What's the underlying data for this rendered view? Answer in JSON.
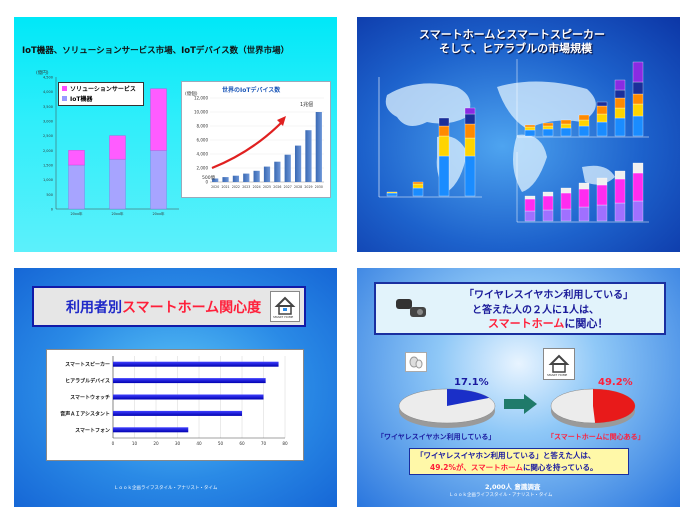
{
  "slide1": {
    "title": "IoT機器、ソリューションサービス市場、IoTデバイス数（世界市場）",
    "axis_unit": "(億円)",
    "legend": [
      "ソリューションサービス",
      "IoT機器"
    ],
    "inset": {
      "title": "世界のIoTデバイス数",
      "unit": "(億個)",
      "note_start": "500億",
      "note_end": "1兆個"
    }
  },
  "slide2": {
    "title_line1": "スマートホームとスマートスピーカー",
    "title_line2": "そして、ヒアラブルの市場規模"
  },
  "slide3": {
    "title_part1": "利用者別",
    "title_part2": "スマートホーム関心度",
    "icon_label": "SMART HOME",
    "footer": "Ｌｏｏｋ企画ライフスタイル・アナリスト・タイム"
  },
  "slide4": {
    "heading_line1": "「ワイヤレスイヤホン利用している」",
    "heading_line2": "と答えた人の２人に1人は、",
    "heading_line3a": "スマートホーム",
    "heading_line3b": "に関心！",
    "icon_label": "SMART HOME",
    "pct_left": "17.1%",
    "pct_right": "49.2%",
    "label_left": "「ワイヤレスイヤホン利用している」",
    "label_right": "「スマートホームに関心ある」",
    "note_line1": "「ワイヤレスイヤホン利用している」と答えた人は、",
    "note_line2a": "49.2%が、",
    "note_line2b": "スマートホーム",
    "note_line2c": "に関心を持っている。",
    "survey": "2,000人 意識調査",
    "footer": "Ｌｏｏｋ企画ライフスタイル・アナリスト・タイム"
  },
  "chart_data": [
    {
      "type": "bar",
      "title": "",
      "categories": [
        "20xx年",
        "20xx年",
        "20xx年"
      ],
      "series": [
        {
          "name": "IoT機器",
          "values": [
            1500,
            1700,
            2000
          ]
        },
        {
          "name": "ソリューションサービス",
          "values": [
            500,
            800,
            2100
          ]
        }
      ],
      "stacked": true,
      "ylim": [
        0,
        4500
      ],
      "yticks": [
        0,
        500,
        1000,
        1500,
        2000,
        2500,
        3000,
        3500,
        4000,
        4500
      ]
    },
    {
      "type": "bar",
      "title": "世界のIoTデバイス数",
      "categories": [
        "2020",
        "2021",
        "2022",
        "2023",
        "2024",
        "2025",
        "2026",
        "2027",
        "2028",
        "2029",
        "2030"
      ],
      "values": [
        500,
        700,
        900,
        1200,
        1600,
        2200,
        2900,
        3900,
        5200,
        7400,
        10000
      ],
      "ylim": [
        0,
        12000
      ],
      "yticks": [
        0,
        2000,
        4000,
        6000,
        8000,
        10000,
        12000
      ]
    },
    {
      "type": "bar",
      "title": "",
      "orientation": "horizontal",
      "categories": [
        "スマートスピーカー",
        "ヒアラブルデバイス",
        "スマートウォッチ",
        "音声ＡＩアシスタント",
        "スマートフォン"
      ],
      "values": [
        77,
        71,
        70,
        60,
        35
      ],
      "xlim": [
        0,
        80
      ],
      "xticks": [
        0,
        10,
        20,
        30,
        40,
        50,
        60,
        70,
        80
      ]
    },
    {
      "type": "pie",
      "title": "",
      "values": [
        17.1,
        82.9
      ],
      "label": "17.1%"
    },
    {
      "type": "pie",
      "title": "",
      "values": [
        49.2,
        50.8
      ],
      "label": "49.2%"
    }
  ]
}
